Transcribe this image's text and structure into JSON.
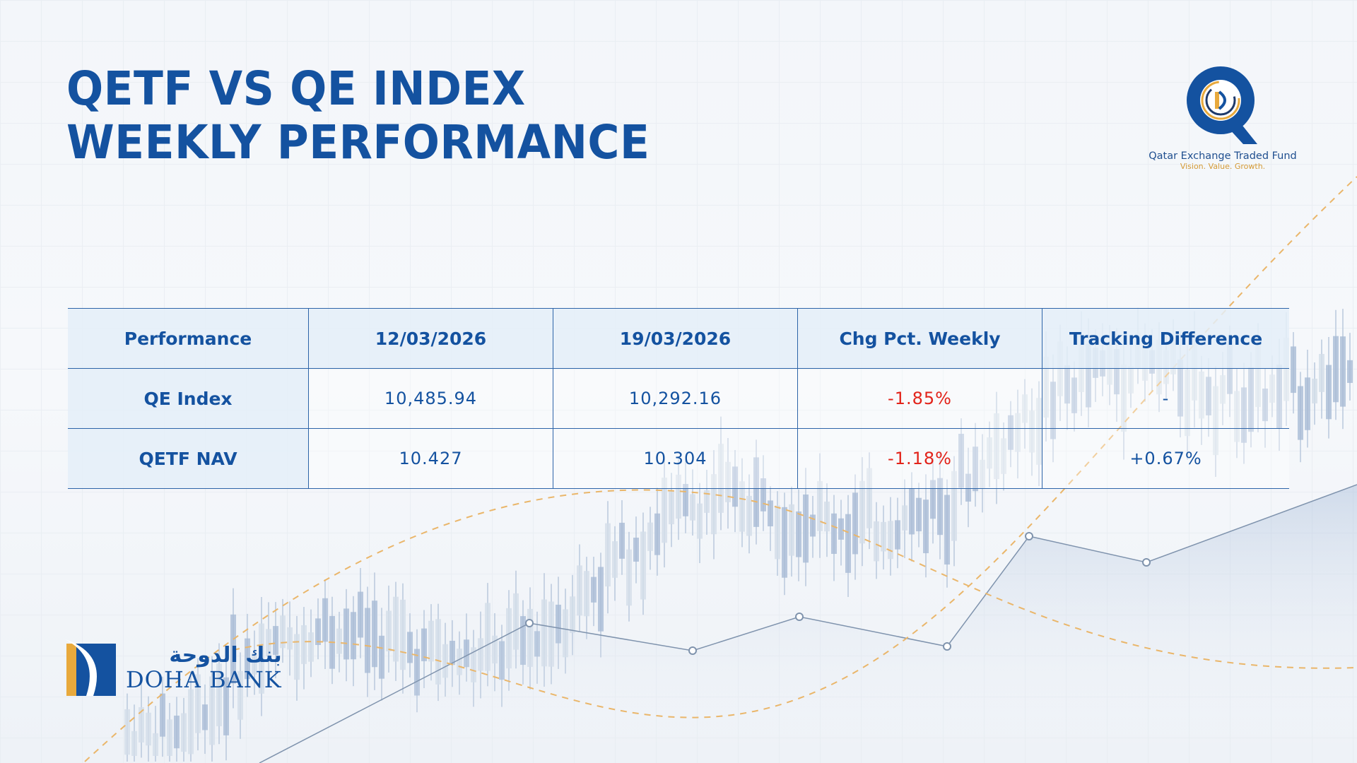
{
  "title": {
    "line1": "QETF VS QE INDEX",
    "line2": "WEEKLY PERFORMANCE"
  },
  "qetf_logo": {
    "name": "Qatar Exchange Traded Fund",
    "tagline": "Vision. Value. Growth."
  },
  "table": {
    "headers": [
      "Performance",
      "12/03/2026",
      "19/03/2026",
      "Chg Pct. Weekly",
      "Tracking Difference"
    ],
    "rows": [
      {
        "label": "QE Index",
        "prev": "10,485.94",
        "curr": "10,292.16",
        "chg": "-1.85%",
        "track": "-"
      },
      {
        "label": "QETF NAV",
        "prev": "10.427",
        "curr": "10.304",
        "chg": "-1.18%",
        "track": "+0.67%"
      }
    ]
  },
  "doha_bank": {
    "arabic": "بنك الدوحة",
    "english": "DOHA BANK"
  },
  "colors": {
    "brand_blue": "#1452a0",
    "gold": "#e8a93c",
    "negative": "#e2231a"
  }
}
